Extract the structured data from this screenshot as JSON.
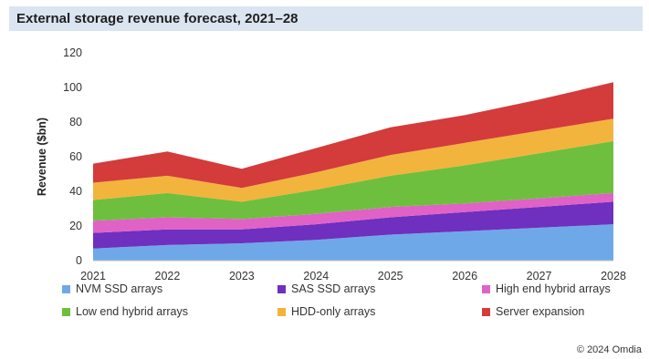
{
  "chart_data": {
    "type": "area",
    "title": "External storage revenue forecast, 2021–28",
    "xlabel": "",
    "ylabel": "Revenue ($bn)",
    "x": [
      "2021",
      "2022",
      "2023",
      "2024",
      "2025",
      "2026",
      "2027",
      "2028"
    ],
    "ylim": [
      0,
      120
    ],
    "yticks": [
      0,
      20,
      40,
      60,
      80,
      100,
      120
    ],
    "stacked": true,
    "grid": false,
    "legend_position": "bottom",
    "series": [
      {
        "name": "NVM SSD arrays",
        "color": "#6fa8e8",
        "values": [
          7,
          9,
          10,
          12,
          15,
          17,
          19,
          21
        ]
      },
      {
        "name": "SAS SSD arrays",
        "color": "#6f2fbf",
        "values": [
          9,
          9,
          8,
          9,
          10,
          11,
          12,
          13
        ]
      },
      {
        "name": "High end hybrid arrays",
        "color": "#e062c6",
        "values": [
          7,
          7,
          6,
          6,
          6,
          5,
          5,
          5
        ]
      },
      {
        "name": "Low end hybrid arrays",
        "color": "#6fbf3e",
        "values": [
          12,
          14,
          10,
          14,
          18,
          22,
          26,
          30
        ]
      },
      {
        "name": "HDD-only arrays",
        "color": "#f2b43c",
        "values": [
          10,
          10,
          8,
          10,
          12,
          13,
          13,
          13
        ]
      },
      {
        "name": "Server expansion",
        "color": "#d43b3b",
        "values": [
          11,
          14,
          11,
          14,
          16,
          16,
          18,
          21
        ]
      }
    ]
  },
  "footer": {
    "copyright": "© 2024 Omdia"
  }
}
